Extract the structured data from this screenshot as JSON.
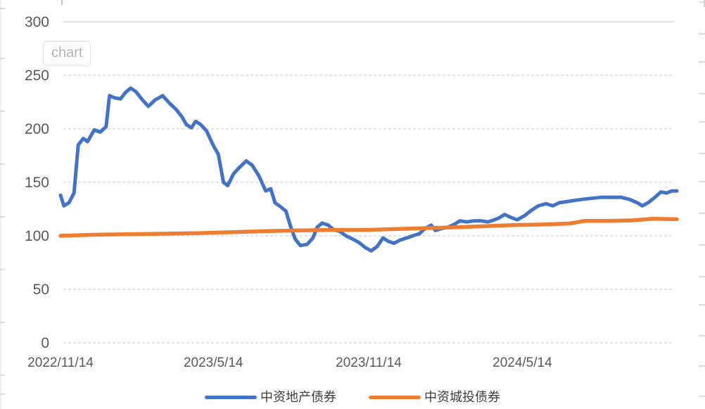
{
  "tooltip": {
    "label": "chart"
  },
  "colors": {
    "series_blue": "#4472C4",
    "series_orange": "#ED7D31",
    "gridline": "#d9d9d9",
    "gridline_top_solid": "#e2e2e2",
    "axis_label": "#595959",
    "crop_artifact": "#c9c9c9"
  },
  "chart_data": {
    "type": "line",
    "title": "",
    "xlabel": "",
    "ylabel": "",
    "grid": "horizontal-dashed",
    "legend_position": "bottom",
    "x_axis": {
      "start": "2022/11/14",
      "end": "2024/11/13",
      "tick_labels": [
        "2022/11/14",
        "2023/5/14",
        "2023/11/14",
        "2024/5/14"
      ]
    },
    "y_axis": {
      "range": [
        0,
        300
      ],
      "ticks": [
        300,
        250,
        200,
        150,
        100,
        50,
        0
      ]
    },
    "series": [
      {
        "name": "中资地产债券",
        "color": "#4472C4",
        "points": [
          [
            "2022/11/14",
            138
          ],
          [
            "2022/11/18",
            128
          ],
          [
            "2022/11/24",
            131
          ],
          [
            "2022/11/30",
            140
          ],
          [
            "2022/12/5",
            185
          ],
          [
            "2022/12/11",
            191
          ],
          [
            "2022/12/16",
            188
          ],
          [
            "2022/12/24",
            199
          ],
          [
            "2022/12/31",
            197
          ],
          [
            "2023/1/7",
            202
          ],
          [
            "2023/1/11",
            231
          ],
          [
            "2023/1/17",
            229
          ],
          [
            "2023/1/24",
            228
          ],
          [
            "2023/1/30",
            234
          ],
          [
            "2023/2/5",
            238
          ],
          [
            "2023/2/11",
            235
          ],
          [
            "2023/2/18",
            228
          ],
          [
            "2023/2/26",
            221
          ],
          [
            "2023/3/6",
            227
          ],
          [
            "2023/3/15",
            231
          ],
          [
            "2023/3/23",
            224
          ],
          [
            "2023/3/31",
            218
          ],
          [
            "2023/4/7",
            211
          ],
          [
            "2023/4/12",
            204
          ],
          [
            "2023/4/18",
            201
          ],
          [
            "2023/4/23",
            207
          ],
          [
            "2023/4/29",
            204
          ],
          [
            "2023/5/6",
            198
          ],
          [
            "2023/5/13",
            186
          ],
          [
            "2023/5/20",
            176
          ],
          [
            "2023/5/26",
            150
          ],
          [
            "2023/5/31",
            147
          ],
          [
            "2023/6/7",
            158
          ],
          [
            "2023/6/14",
            164
          ],
          [
            "2023/6/22",
            170
          ],
          [
            "2023/6/29",
            166
          ],
          [
            "2023/7/7",
            156
          ],
          [
            "2023/7/15",
            142
          ],
          [
            "2023/7/21",
            144
          ],
          [
            "2023/7/26",
            131
          ],
          [
            "2023/8/2",
            127
          ],
          [
            "2023/8/8",
            123
          ],
          [
            "2023/8/13",
            110
          ],
          [
            "2023/8/19",
            97
          ],
          [
            "2023/8/25",
            91
          ],
          [
            "2023/9/2",
            92
          ],
          [
            "2023/9/9",
            98
          ],
          [
            "2023/9/14",
            108
          ],
          [
            "2023/9/20",
            112
          ],
          [
            "2023/9/27",
            110
          ],
          [
            "2023/10/3",
            106
          ],
          [
            "2023/10/11",
            104
          ],
          [
            "2023/10/18",
            100
          ],
          [
            "2023/10/26",
            97
          ],
          [
            "2023/11/2",
            94
          ],
          [
            "2023/11/10",
            89
          ],
          [
            "2023/11/17",
            86
          ],
          [
            "2023/11/24",
            90
          ],
          [
            "2023/12/1",
            98
          ],
          [
            "2023/12/7",
            95
          ],
          [
            "2023/12/14",
            93
          ],
          [
            "2023/12/21",
            96
          ],
          [
            "2023/12/29",
            98
          ],
          [
            "2024/1/5",
            100
          ],
          [
            "2024/1/13",
            102
          ],
          [
            "2024/1/20",
            107
          ],
          [
            "2024/1/27",
            110
          ],
          [
            "2024/2/1",
            105
          ],
          [
            "2024/2/9",
            107
          ],
          [
            "2024/2/16",
            108
          ],
          [
            "2024/2/24",
            111
          ],
          [
            "2024/3/1",
            114
          ],
          [
            "2024/3/9",
            113
          ],
          [
            "2024/3/18",
            114
          ],
          [
            "2024/3/26",
            114
          ],
          [
            "2024/4/3",
            113
          ],
          [
            "2024/4/11",
            115
          ],
          [
            "2024/4/17",
            117
          ],
          [
            "2024/4/23",
            120
          ],
          [
            "2024/5/1",
            117
          ],
          [
            "2024/5/8",
            115
          ],
          [
            "2024/5/17",
            119
          ],
          [
            "2024/5/25",
            124
          ],
          [
            "2024/6/2",
            128
          ],
          [
            "2024/6/11",
            130
          ],
          [
            "2024/6/19",
            128
          ],
          [
            "2024/6/27",
            131
          ],
          [
            "2024/7/6",
            132
          ],
          [
            "2024/7/14",
            133
          ],
          [
            "2024/7/23",
            134
          ],
          [
            "2024/8/3",
            135
          ],
          [
            "2024/8/15",
            136
          ],
          [
            "2024/8/28",
            136
          ],
          [
            "2024/9/8",
            136
          ],
          [
            "2024/9/18",
            134
          ],
          [
            "2024/9/27",
            131
          ],
          [
            "2024/10/3",
            128
          ],
          [
            "2024/10/10",
            131
          ],
          [
            "2024/10/18",
            136
          ],
          [
            "2024/10/25",
            141
          ],
          [
            "2024/11/1",
            140
          ],
          [
            "2024/11/7",
            142
          ],
          [
            "2024/11/13",
            142
          ]
        ]
      },
      {
        "name": "中资城投债券",
        "color": "#ED7D31",
        "points": [
          [
            "2022/11/14",
            100
          ],
          [
            "2022/12/21",
            101
          ],
          [
            "2023/2/1",
            101.5
          ],
          [
            "2023/3/15",
            102
          ],
          [
            "2023/4/25",
            102.5
          ],
          [
            "2023/6/6",
            103.5
          ],
          [
            "2023/7/18",
            104.5
          ],
          [
            "2023/8/20",
            105
          ],
          [
            "2023/10/1",
            105.5
          ],
          [
            "2023/11/11",
            105.5
          ],
          [
            "2023/12/22",
            106.5
          ],
          [
            "2024/2/2",
            107.5
          ],
          [
            "2024/2/27",
            108
          ],
          [
            "2024/3/31",
            109
          ],
          [
            "2024/5/3",
            110
          ],
          [
            "2024/6/5",
            110.5
          ],
          [
            "2024/7/9",
            111.5
          ],
          [
            "2024/7/27",
            114
          ],
          [
            "2024/8/28",
            114
          ],
          [
            "2024/9/22",
            114.5
          ],
          [
            "2024/10/15",
            116
          ],
          [
            "2024/11/13",
            115.5
          ]
        ]
      }
    ]
  }
}
